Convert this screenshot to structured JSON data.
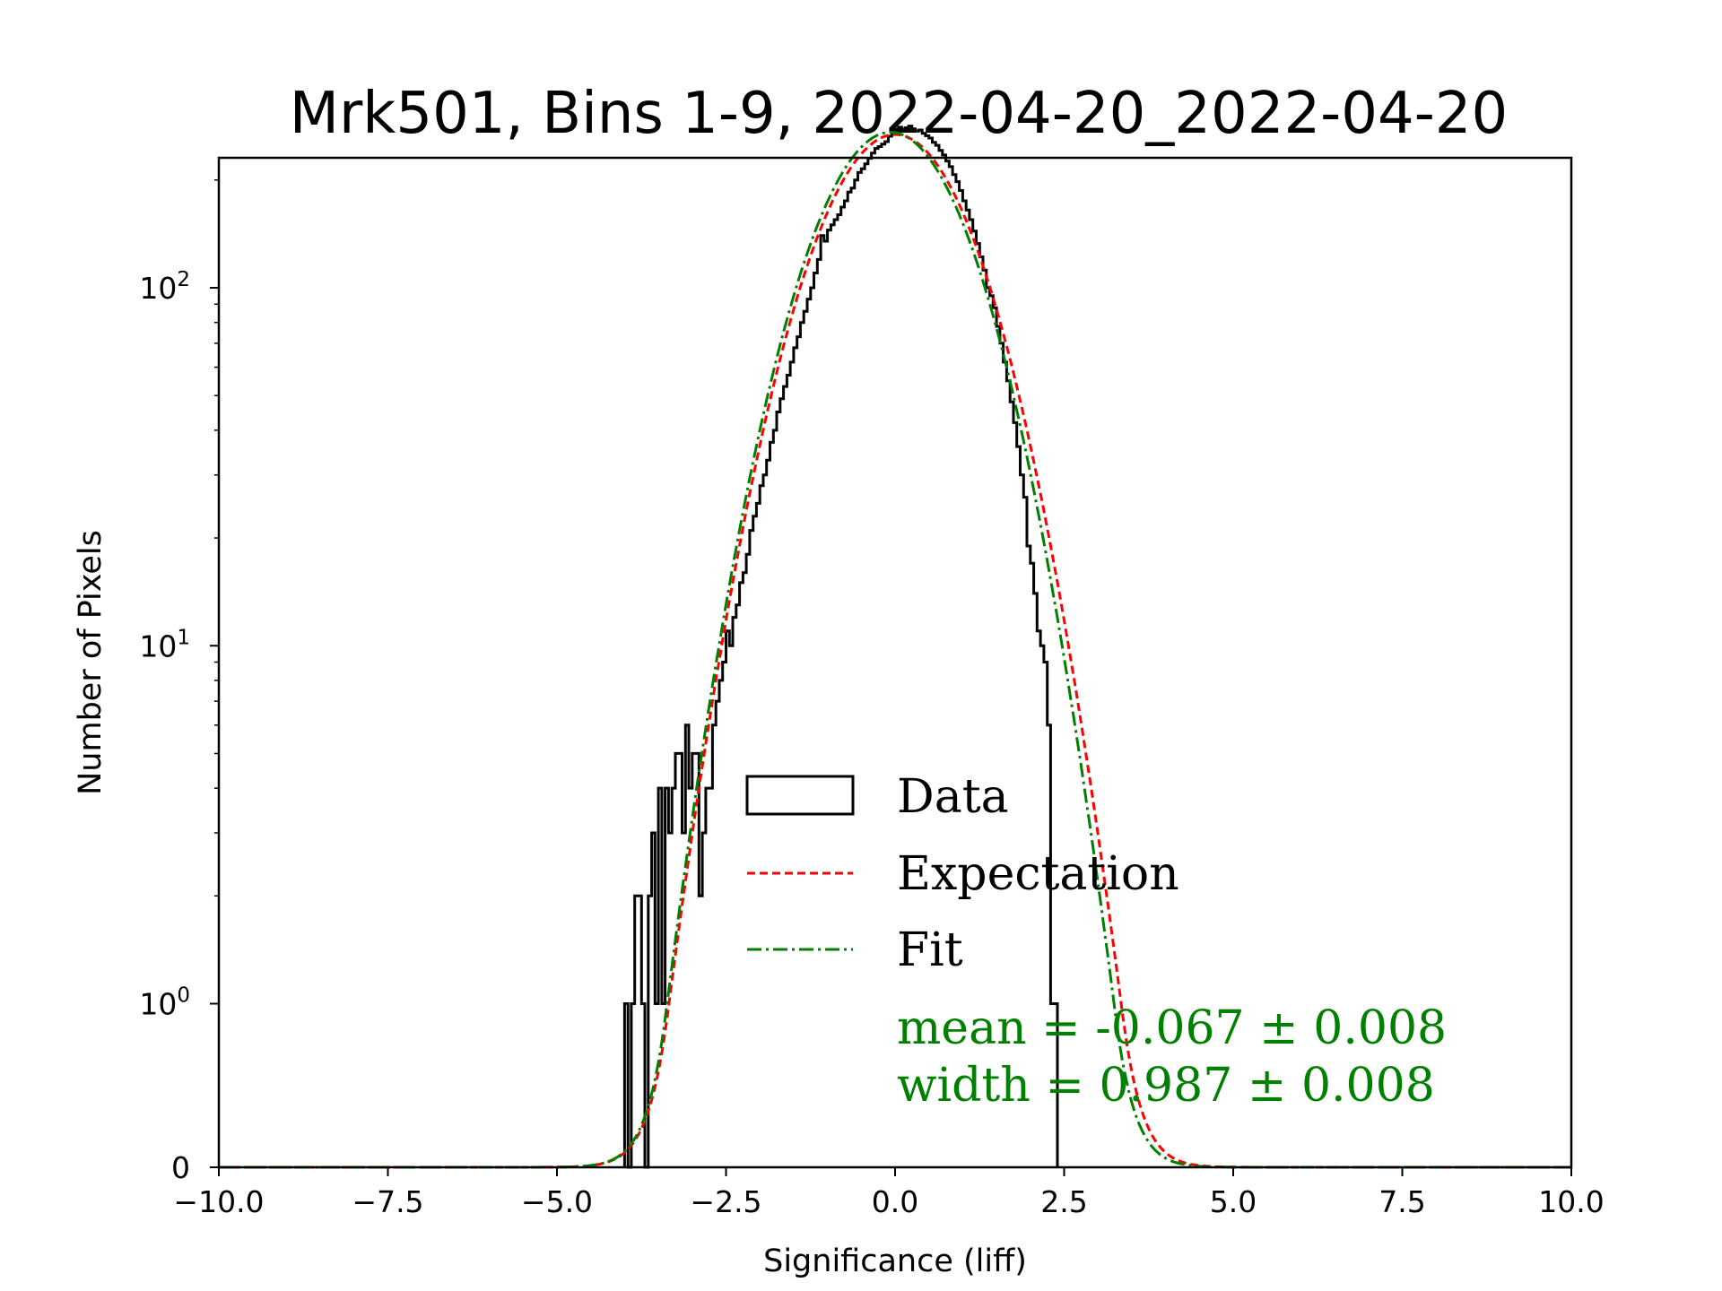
{
  "chart_data": {
    "type": "histogram",
    "title": "Mrk501, Bins 1-9, 2022-04-20_2022-04-20",
    "xlabel": "Significance (liff)",
    "ylabel": "Number of Pixels",
    "xlim": [
      -10.0,
      10.0
    ],
    "x_ticks": [
      "−10.0",
      "−7.5",
      "−5.0",
      "−2.5",
      "0.0",
      "2.5",
      "5.0",
      "7.5",
      "10.0"
    ],
    "x_tick_values": [
      -10.0,
      -7.5,
      -5.0,
      -2.5,
      0.0,
      2.5,
      5.0,
      7.5,
      10.0
    ],
    "y_scale": "symlog",
    "y_ticks": [
      {
        "value": 0,
        "base": "0",
        "exp": ""
      },
      {
        "value": 1,
        "base": "10",
        "exp": "0"
      },
      {
        "value": 10,
        "base": "10",
        "exp": "1"
      },
      {
        "value": 100,
        "base": "10",
        "exp": "2"
      }
    ],
    "legend": {
      "placement": "lower-center",
      "entries": [
        {
          "label": "Data",
          "style": "step",
          "color": "#000000"
        },
        {
          "label": "Expectation",
          "style": "dashed",
          "color": "#ff0000"
        },
        {
          "label": "Fit",
          "style": "dash-dot",
          "color": "#008000"
        }
      ]
    },
    "stats": {
      "mean_line": "mean = -0.067 ± 0.008",
      "width_line": "width = 0.987 ± 0.008",
      "color": "#008000"
    },
    "expectation": {
      "amplitude": 268,
      "mean": 0.0,
      "sigma": 1.0,
      "color": "#ff0000"
    },
    "fit": {
      "amplitude": 272,
      "mean": -0.067,
      "sigma": 0.987,
      "color": "#008000"
    },
    "data": {
      "bin_width": 0.05,
      "bin_start": -4.0,
      "counts": [
        1,
        0,
        1,
        2,
        2,
        1,
        0,
        2,
        3,
        1,
        4,
        1,
        4,
        3,
        4,
        5,
        5,
        3,
        6,
        4,
        5,
        5,
        2,
        3,
        4,
        4,
        6,
        7,
        8,
        9,
        11,
        10,
        12,
        13,
        15,
        16,
        18,
        21,
        23,
        25,
        28,
        30,
        33,
        37,
        40,
        45,
        49,
        53,
        57,
        62,
        68,
        73,
        80,
        86,
        93,
        100,
        110,
        120,
        140,
        135,
        145,
        150,
        155,
        160,
        168,
        175,
        185,
        190,
        200,
        210,
        215,
        222,
        230,
        238,
        245,
        248,
        252,
        256,
        265,
        270,
        274,
        281,
        276,
        280,
        283,
        278,
        274,
        276,
        270,
        266,
        262,
        255,
        250,
        242,
        235,
        226,
        218,
        207,
        198,
        187,
        175,
        165,
        155,
        144,
        133,
        122,
        112,
        100,
        95,
        88,
        78,
        70,
        62,
        55,
        48,
        42,
        36,
        30,
        26,
        19,
        17,
        14,
        11,
        10,
        9,
        6,
        1,
        1
      ],
      "stroke": "#000000"
    }
  }
}
